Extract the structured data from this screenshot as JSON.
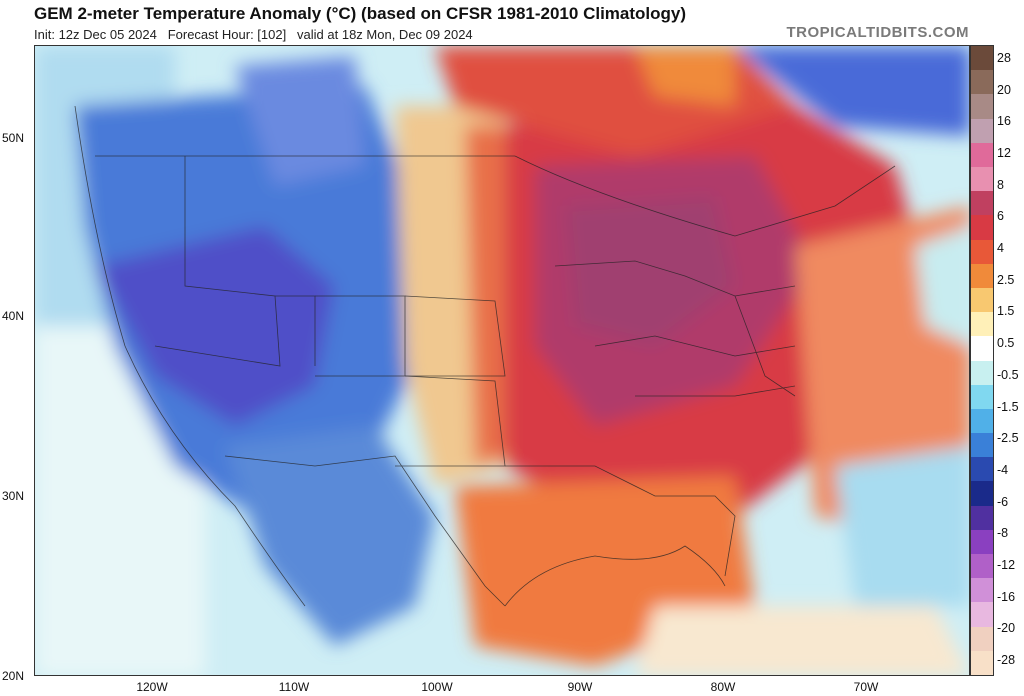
{
  "header": {
    "title": "GEM 2-meter Temperature Anomaly (°C) (based on CFSR 1981-2010 Climatology)",
    "init": "Init: 12z Dec 05 2024",
    "forecast_hour": "Forecast Hour: [102]",
    "valid": "valid at 18z Mon, Dec 09 2024",
    "brand": "TROPICALTIDBITS.COM"
  },
  "axes": {
    "lat_labels": [
      "50N",
      "40N",
      "30N",
      "20N"
    ],
    "lon_labels": [
      "120W",
      "110W",
      "100W",
      "90W",
      "80W",
      "70W"
    ]
  },
  "colorbar": {
    "labels": [
      "28",
      "20",
      "16",
      "12",
      "8",
      "6",
      "4",
      "2.5",
      "1.5",
      "0.5",
      "-0.5",
      "-1.5",
      "-2.5",
      "-4",
      "-6",
      "-8",
      "-12",
      "-16",
      "-20",
      "-28"
    ],
    "colors": [
      "#6b4a3a",
      "#8a6a5a",
      "#a88a86",
      "#c0a0b0",
      "#e06a9a",
      "#e890b0",
      "#c04060",
      "#d83a44",
      "#e85838",
      "#f08a3a",
      "#f8c870",
      "#fff0b8",
      "#ffffff",
      "#c8f0f0",
      "#80d8f0",
      "#50b0e8",
      "#3a80d8",
      "#2a4ab0",
      "#1a2a8a",
      "#5030a0",
      "#8a40c0",
      "#b060c8",
      "#d090d8",
      "#e8b8e0",
      "#f0d0c0",
      "#f8e0c8"
    ]
  },
  "legend_colors": {
    "strong_warm": "#a83a6a",
    "warm": "#d83a44",
    "mild_warm": "#f08a3a",
    "neutral": "#ffffff",
    "cool": "#80c8f0",
    "cold": "#3a6ad8",
    "very_cold": "#6a50c0"
  }
}
